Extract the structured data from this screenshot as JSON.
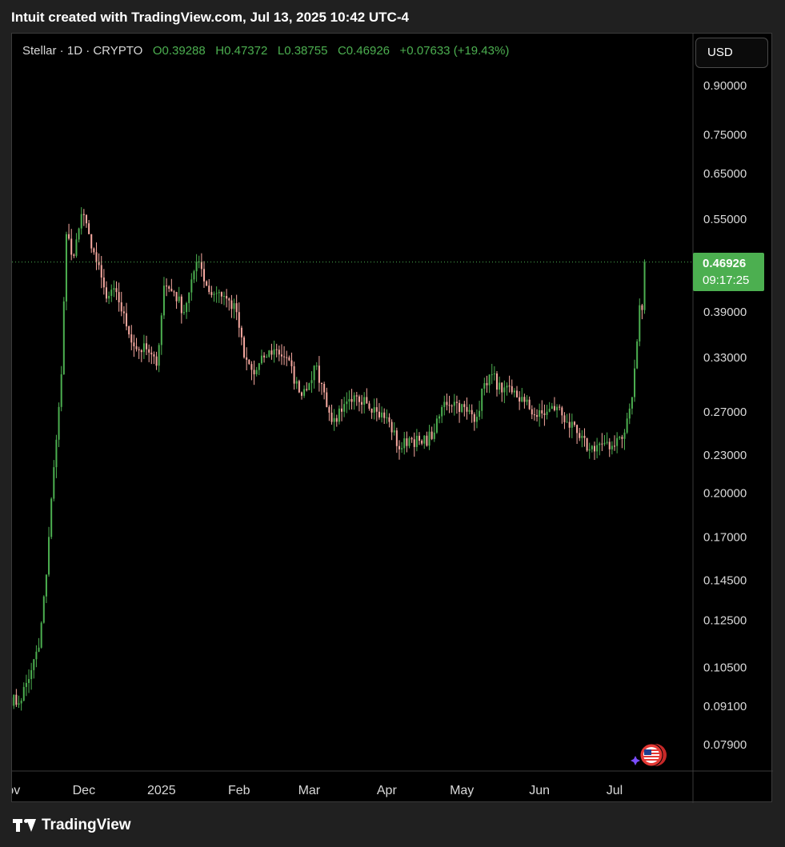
{
  "header": {
    "text": "Intuit created with TradingView.com, Jul 13, 2025 10:42 UTC-4"
  },
  "symbol": {
    "name": "Stellar · 1D · CRYPTO",
    "o_label": "O",
    "o_value": "0.39288",
    "h_label": "H",
    "h_value": "0.47372",
    "l_label": "L",
    "l_value": "0.38755",
    "c_label": "C",
    "c_value": "0.46926",
    "change": "+0.07633 (+19.43%)"
  },
  "currency_button": "USD",
  "last_price": {
    "price": "0.46926",
    "countdown": "09:17:25"
  },
  "footer": {
    "brand": "TradingView"
  },
  "colors": {
    "up": "#4caf50",
    "down": "#f7a9a0",
    "background": "#000000",
    "axis_text": "#d9d9d9"
  },
  "chart_data": {
    "type": "candlestick",
    "title": "Stellar · 1D · CRYPTO",
    "y_scale": "log",
    "y_ticks": [
      "0.90000",
      "0.75000",
      "0.65000",
      "0.55000",
      "0.39000",
      "0.33000",
      "0.27000",
      "0.23000",
      "0.20000",
      "0.17000",
      "0.14500",
      "0.12500",
      "0.10500",
      "0.09100",
      "0.07900"
    ],
    "x_ticks": [
      "Nov",
      "Dec",
      "2025",
      "Feb",
      "Mar",
      "Apr",
      "May",
      "Jun",
      "Jul"
    ],
    "x_tick_dates": [
      "2024-11-01",
      "2024-12-01",
      "2025-01-01",
      "2025-02-01",
      "2025-03-01",
      "2025-04-01",
      "2025-05-01",
      "2025-06-01",
      "2025-07-01"
    ],
    "start_date": "2024-11-01",
    "key_closes": [
      [
        "2024-11-01",
        0.094
      ],
      [
        "2024-11-05",
        0.092
      ],
      [
        "2024-11-10",
        0.104
      ],
      [
        "2024-11-13",
        0.113
      ],
      [
        "2024-11-16",
        0.148
      ],
      [
        "2024-11-19",
        0.22
      ],
      [
        "2024-11-22",
        0.31
      ],
      [
        "2024-11-24",
        0.52
      ],
      [
        "2024-11-27",
        0.48
      ],
      [
        "2024-11-30",
        0.56
      ],
      [
        "2024-12-03",
        0.52
      ],
      [
        "2024-12-06",
        0.47
      ],
      [
        "2024-12-10",
        0.41
      ],
      [
        "2024-12-14",
        0.42
      ],
      [
        "2024-12-18",
        0.37
      ],
      [
        "2024-12-22",
        0.34
      ],
      [
        "2024-12-26",
        0.34
      ],
      [
        "2024-12-30",
        0.32
      ],
      [
        "2025-01-02",
        0.43
      ],
      [
        "2025-01-06",
        0.42
      ],
      [
        "2025-01-10",
        0.39
      ],
      [
        "2025-01-13",
        0.44
      ],
      [
        "2025-01-16",
        0.47
      ],
      [
        "2025-01-20",
        0.42
      ],
      [
        "2025-01-24",
        0.42
      ],
      [
        "2025-01-27",
        0.41
      ],
      [
        "2025-01-31",
        0.39
      ],
      [
        "2025-02-03",
        0.33
      ],
      [
        "2025-02-07",
        0.31
      ],
      [
        "2025-02-11",
        0.33
      ],
      [
        "2025-02-15",
        0.34
      ],
      [
        "2025-02-20",
        0.33
      ],
      [
        "2025-02-25",
        0.29
      ],
      [
        "2025-03-01",
        0.3
      ],
      [
        "2025-03-03",
        0.32
      ],
      [
        "2025-03-07",
        0.29
      ],
      [
        "2025-03-10",
        0.26
      ],
      [
        "2025-03-14",
        0.27
      ],
      [
        "2025-03-18",
        0.28
      ],
      [
        "2025-03-23",
        0.285
      ],
      [
        "2025-03-28",
        0.27
      ],
      [
        "2025-04-02",
        0.26
      ],
      [
        "2025-04-06",
        0.235
      ],
      [
        "2025-04-10",
        0.245
      ],
      [
        "2025-04-15",
        0.24
      ],
      [
        "2025-04-20",
        0.25
      ],
      [
        "2025-04-24",
        0.28
      ],
      [
        "2025-04-28",
        0.28
      ],
      [
        "2025-05-03",
        0.27
      ],
      [
        "2025-05-07",
        0.265
      ],
      [
        "2025-05-10",
        0.3
      ],
      [
        "2025-05-13",
        0.31
      ],
      [
        "2025-05-17",
        0.29
      ],
      [
        "2025-05-21",
        0.29
      ],
      [
        "2025-05-26",
        0.28
      ],
      [
        "2025-05-31",
        0.265
      ],
      [
        "2025-06-04",
        0.27
      ],
      [
        "2025-06-08",
        0.275
      ],
      [
        "2025-06-12",
        0.26
      ],
      [
        "2025-06-17",
        0.245
      ],
      [
        "2025-06-21",
        0.235
      ],
      [
        "2025-06-25",
        0.24
      ],
      [
        "2025-06-29",
        0.235
      ],
      [
        "2025-07-02",
        0.245
      ],
      [
        "2025-07-05",
        0.25
      ],
      [
        "2025-07-08",
        0.285
      ],
      [
        "2025-07-10",
        0.35
      ],
      [
        "2025-07-11",
        0.4
      ],
      [
        "2025-07-12",
        0.393
      ],
      [
        "2025-07-13",
        0.469
      ]
    ],
    "last_candle": {
      "open": 0.39288,
      "high": 0.47372,
      "low": 0.38755,
      "close": 0.46926
    }
  }
}
